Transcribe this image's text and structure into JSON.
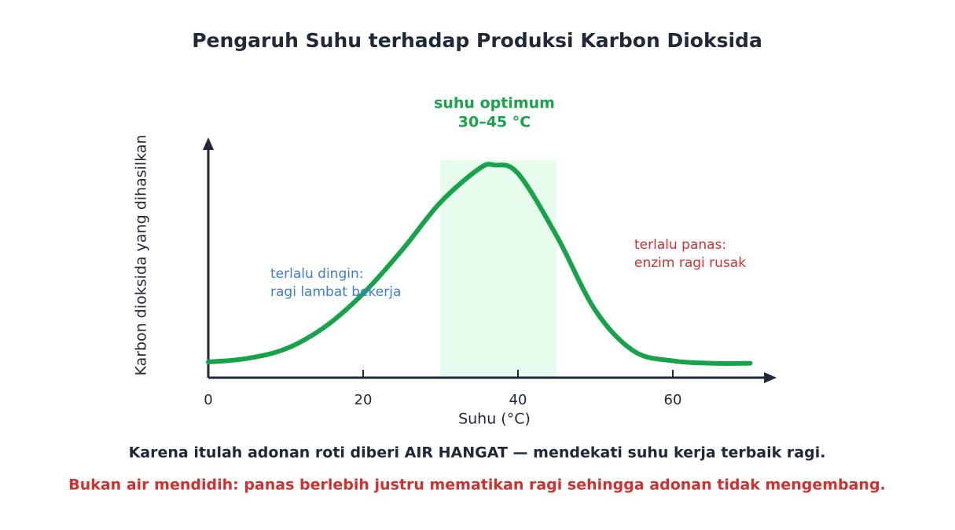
{
  "chart_data": {
    "type": "line",
    "title": "Pengaruh Suhu terhadap Produksi Karbon Dioksida",
    "x_label": "Suhu (°C)",
    "y_label": "Karbon dioksida yang dihasilkan",
    "x": [
      0,
      5,
      10,
      15,
      20,
      25,
      30,
      35,
      37,
      40,
      45,
      50,
      55,
      60,
      65,
      70
    ],
    "series": [
      {
        "name": "produksi CO2",
        "color": "#16a34a",
        "values": [
          6.5,
          8,
          12,
          21,
          35,
          53,
          73,
          87,
          88.5,
          85,
          59,
          28,
          11,
          7,
          6,
          6
        ]
      }
    ],
    "xlim": [
      0,
      73
    ],
    "ylim": [
      0,
      100
    ],
    "xticks": [
      0,
      20,
      40,
      60
    ],
    "optimum_range": [
      30,
      45
    ],
    "optimum_color": "#e8fced",
    "annotations": {
      "optimum": [
        "suhu optimum",
        "30–45 °C"
      ],
      "cold": [
        "terlalu dingin:",
        "ragi lambat bekerja"
      ],
      "hot": [
        "terlalu panas:",
        "enzim ragi rusak"
      ]
    },
    "notes": [
      "Karena itulah adonan roti diberi AIR HANGAT — mendekati suhu kerja terbaik ragi.",
      "Bukan air mendidih: panas berlebih justru mematikan ragi sehingga adonan tidak mengembang."
    ]
  }
}
